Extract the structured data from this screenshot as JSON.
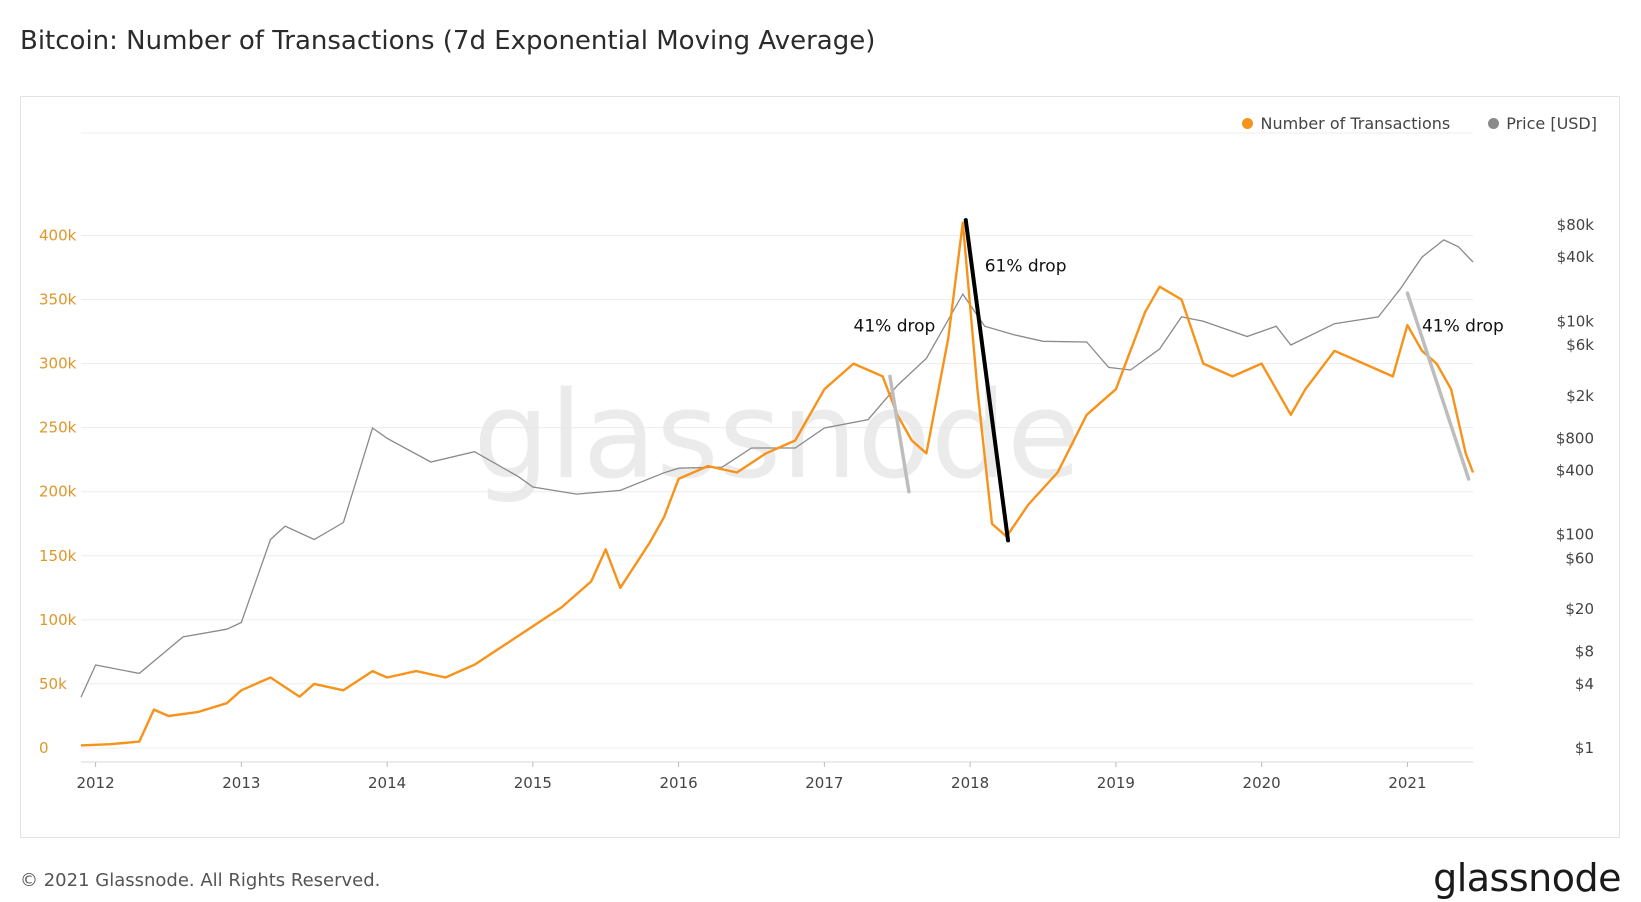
{
  "page": {
    "title": "Bitcoin: Number of Transactions (7d Exponential Moving Average)",
    "copyright": "© 2021 Glassnode. All Rights Reserved.",
    "logo": "glassnode",
    "watermark": "glassnode"
  },
  "colors": {
    "transactions": "#f7931a",
    "price": "#8a8a8a",
    "drop_line_black": "#000000",
    "drop_line_grey": "#bdbdbd",
    "left_axis_text": "#e0962a",
    "grid": "#ececec"
  },
  "chart_data": {
    "type": "line",
    "title": "Bitcoin: Number of Transactions (7d Exponential Moving Average)",
    "x_ticks": [
      "2012",
      "2013",
      "2014",
      "2015",
      "2016",
      "2017",
      "2018",
      "2019",
      "2020",
      "2021"
    ],
    "x_range": [
      2011.9,
      2021.45
    ],
    "y_left": {
      "min": 0,
      "max": 430000,
      "ticks": [
        0,
        50000,
        100000,
        150000,
        200000,
        250000,
        300000,
        350000,
        400000
      ],
      "tick_labels": [
        "0",
        "50k",
        "100k",
        "150k",
        "200k",
        "250k",
        "300k",
        "350k",
        "400k"
      ]
    },
    "y_right": {
      "scale": "log",
      "min": 1,
      "max": 80000,
      "ticks": [
        1,
        4,
        8,
        20,
        60,
        100,
        400,
        800,
        2000,
        6000,
        10000,
        40000,
        80000
      ],
      "tick_labels": [
        "$1",
        "$4",
        "$8",
        "$20",
        "$60",
        "$100",
        "$400",
        "$800",
        "$2k",
        "$6k",
        "$10k",
        "$40k",
        "$80k"
      ]
    },
    "legend_position": "top-right",
    "grid": true,
    "series": [
      {
        "name": "Number of Transactions",
        "axis": "left",
        "x": [
          2011.9,
          2012.1,
          2012.3,
          2012.4,
          2012.5,
          2012.7,
          2012.9,
          2013.0,
          2013.2,
          2013.4,
          2013.5,
          2013.7,
          2013.9,
          2014.0,
          2014.2,
          2014.4,
          2014.6,
          2014.8,
          2015.0,
          2015.2,
          2015.4,
          2015.5,
          2015.6,
          2015.8,
          2015.9,
          2016.0,
          2016.2,
          2016.4,
          2016.6,
          2016.8,
          2016.9,
          2017.0,
          2017.2,
          2017.4,
          2017.5,
          2017.6,
          2017.7,
          2017.85,
          2017.95,
          2018.05,
          2018.15,
          2018.25,
          2018.4,
          2018.6,
          2018.8,
          2019.0,
          2019.2,
          2019.3,
          2019.45,
          2019.6,
          2019.8,
          2020.0,
          2020.2,
          2020.3,
          2020.5,
          2020.7,
          2020.9,
          2021.0,
          2021.1,
          2021.2,
          2021.3,
          2021.4,
          2021.45
        ],
        "values": [
          2000,
          3000,
          5000,
          30000,
          25000,
          28000,
          35000,
          45000,
          55000,
          40000,
          50000,
          45000,
          60000,
          55000,
          60000,
          55000,
          65000,
          80000,
          95000,
          110000,
          130000,
          155000,
          125000,
          160000,
          180000,
          210000,
          220000,
          215000,
          230000,
          240000,
          260000,
          280000,
          300000,
          290000,
          260000,
          240000,
          230000,
          320000,
          410000,
          280000,
          175000,
          165000,
          190000,
          215000,
          260000,
          280000,
          340000,
          360000,
          350000,
          300000,
          290000,
          300000,
          260000,
          280000,
          310000,
          300000,
          290000,
          330000,
          310000,
          300000,
          280000,
          230000,
          215000
        ]
      },
      {
        "name": "Price [USD]",
        "axis": "right",
        "x": [
          2011.9,
          2012.0,
          2012.3,
          2012.6,
          2012.9,
          2013.0,
          2013.2,
          2013.3,
          2013.5,
          2013.7,
          2013.9,
          2014.0,
          2014.3,
          2014.6,
          2014.9,
          2015.0,
          2015.3,
          2015.6,
          2015.9,
          2016.0,
          2016.3,
          2016.5,
          2016.8,
          2017.0,
          2017.3,
          2017.5,
          2017.7,
          2017.95,
          2018.1,
          2018.3,
          2018.5,
          2018.8,
          2018.95,
          2019.1,
          2019.3,
          2019.45,
          2019.6,
          2019.9,
          2020.1,
          2020.2,
          2020.5,
          2020.8,
          2020.95,
          2021.1,
          2021.25,
          2021.35,
          2021.45
        ],
        "values": [
          3,
          6,
          5,
          11,
          13,
          15,
          90,
          120,
          90,
          130,
          1000,
          800,
          480,
          600,
          350,
          280,
          240,
          260,
          380,
          420,
          430,
          650,
          650,
          1000,
          1200,
          2500,
          4500,
          18000,
          9000,
          7500,
          6500,
          6400,
          3700,
          3500,
          5500,
          11000,
          10000,
          7200,
          9000,
          6000,
          9500,
          11000,
          20000,
          40000,
          58000,
          50000,
          36000
        ]
      }
    ],
    "annotations": [
      {
        "text": "41% drop",
        "from": [
          2017.45,
          290000
        ],
        "to": [
          2017.58,
          200000
        ],
        "color": "grey",
        "label_pos": [
          2017.2,
          325000
        ]
      },
      {
        "text": "61% drop",
        "from": [
          2017.97,
          412000
        ],
        "to": [
          2018.26,
          162000
        ],
        "color": "black",
        "label_pos": [
          2018.1,
          372000
        ]
      },
      {
        "text": "41% drop",
        "from": [
          2021.0,
          355000
        ],
        "to": [
          2021.42,
          210000
        ],
        "color": "grey",
        "label_pos": [
          2021.1,
          325000
        ]
      }
    ]
  }
}
